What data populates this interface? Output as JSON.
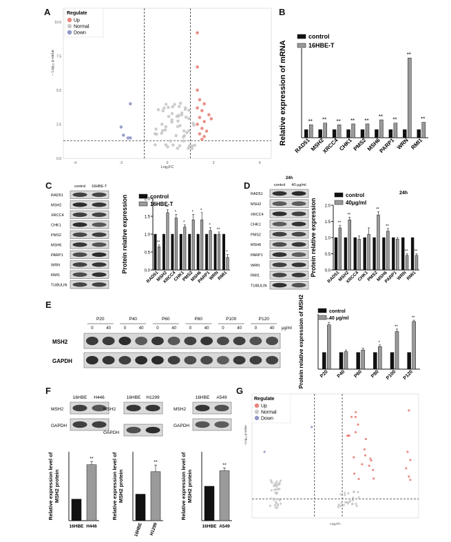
{
  "figure": {
    "panel_letters": [
      "A",
      "B",
      "C",
      "D",
      "E",
      "F",
      "G"
    ]
  },
  "panel_a": {
    "legend_title": "Regulate",
    "legend_items": [
      {
        "label": "Up",
        "color": "#e8847a"
      },
      {
        "label": "Normal",
        "color": "#c8c8c8"
      },
      {
        "label": "Down",
        "color": "#8f96c8"
      }
    ],
    "xlabel": "Log₂FC",
    "ylabel": "− Log₁₀ p-value",
    "x_ticks": [
      "-4",
      "-2",
      "0",
      "2",
      "4"
    ],
    "y_ticks": [
      "0.0",
      "2.5",
      "5.0",
      "7.5",
      "10.0"
    ]
  },
  "panel_b_chart": {
    "type": "bar",
    "ylabel": "Relative expression of mRNA",
    "legend": [
      "control",
      "16HBE-T"
    ],
    "categories": [
      "RAD51",
      "MSH2",
      "XRCC4",
      "CHK1",
      "PMS2",
      "MSH6",
      "PARP1",
      "WRN",
      "RMI1"
    ],
    "series": [
      {
        "name": "control",
        "values": [
          1,
          1,
          1,
          1,
          1,
          1,
          1,
          1,
          1
        ],
        "color": "#111111"
      },
      {
        "name": "16HBE-T",
        "values": [
          1.6,
          1.8,
          1.6,
          1.7,
          1.7,
          2.2,
          1.8,
          9.8,
          1.9
        ],
        "color": "#9a9a9a"
      }
    ],
    "significance": [
      "**",
      "**",
      "**",
      "**",
      "**",
      "**",
      "**",
      "**",
      "**"
    ],
    "ylim": [
      0,
      11
    ]
  },
  "panel_c": {
    "lanes": [
      "control",
      "16HBE-T"
    ],
    "proteins": [
      "RAD51",
      "MSH2",
      "XRCC4",
      "CHK1",
      "PMS2",
      "MSH6",
      "PARP1",
      "WRN",
      "RMI1",
      "TUBULIN"
    ]
  },
  "panel_c_chart": {
    "type": "bar",
    "ylabel": "Protein relative expression",
    "legend": [
      "control",
      "16HBE-T"
    ],
    "categories": [
      "RAD51",
      "MSH2",
      "XRCC4",
      "CHK1",
      "PMS2",
      "MSH6",
      "PARP1",
      "WRN",
      "RMI1"
    ],
    "series": [
      {
        "name": "control",
        "values": [
          1,
          1,
          1,
          1,
          1,
          1,
          1,
          1,
          1
        ],
        "color": "#111111"
      },
      {
        "name": "16HBE-T",
        "values": [
          0.65,
          1.6,
          1.45,
          1.2,
          1.4,
          1.4,
          1.1,
          1.0,
          0.35
        ],
        "color": "#9a9a9a"
      }
    ],
    "errors": [
      0.05,
      0.08,
      0.1,
      0.06,
      0.15,
      0.2,
      0.08,
      0.06,
      0.08
    ],
    "significance": [
      "**",
      "**",
      "*",
      "*",
      "*",
      "*",
      "*",
      "**",
      "*"
    ],
    "y_ticks": [
      "0.0",
      "0.5",
      "1.0",
      "1.5",
      "2.0"
    ],
    "ylim": [
      0,
      2.0
    ]
  },
  "panel_d": {
    "time_label": "24h",
    "lanes": [
      "control",
      "40 μg/ml"
    ],
    "proteins": [
      "RAD51",
      "MSH2",
      "XRCC4",
      "CHK1",
      "PMS2",
      "MSH6",
      "PARP1",
      "WRN",
      "RMI1",
      "TUBULIN"
    ]
  },
  "panel_d_chart": {
    "type": "bar",
    "title": "24h",
    "ylabel": "Protein relative expression",
    "legend": [
      "control",
      "40μg/ml"
    ],
    "categories": [
      "RAD51",
      "MSH2",
      "XRCC4",
      "CHK1",
      "PMS2",
      "MSH6",
      "PARP1",
      "WRN",
      "RMI1"
    ],
    "series": [
      {
        "name": "control",
        "values": [
          1,
          1,
          1,
          1,
          1,
          1,
          1,
          1,
          1
        ],
        "color": "#111111"
      },
      {
        "name": "40μg/ml",
        "values": [
          1.3,
          1.55,
          0.95,
          1.1,
          1.7,
          1.2,
          0.95,
          0.45,
          0.45
        ],
        "color": "#9a9a9a"
      }
    ],
    "errors": [
      0.08,
      0.08,
      0.1,
      0.2,
      0.1,
      0.08,
      0.05,
      0.05,
      0.05
    ],
    "significance": [
      "**",
      "**",
      "",
      "",
      "**",
      "**",
      "",
      "**",
      "**"
    ],
    "y_ticks": [
      "0.0",
      "0.5",
      "1.0",
      "1.5",
      "2.0"
    ],
    "ylim": [
      0,
      2.0
    ]
  },
  "panel_e": {
    "passages": [
      "P20",
      "P40",
      "P60",
      "P80",
      "P100",
      "P120"
    ],
    "doses": [
      "0",
      "40"
    ],
    "unit": "μg/ml",
    "proteins": [
      "MSH2",
      "GAPDH"
    ]
  },
  "panel_e_chart": {
    "type": "bar",
    "ylabel": "Protein relative expression of MSH2",
    "legend": [
      "control",
      "40 μg/ml"
    ],
    "categories": [
      "P20",
      "P40",
      "P60",
      "P80",
      "P100",
      "P120"
    ],
    "series": [
      {
        "name": "control",
        "values": [
          1,
          1,
          1,
          1,
          1,
          1
        ],
        "color": "#111111"
      },
      {
        "name": "40 μg/ml",
        "values": [
          2.65,
          1.05,
          1.15,
          1.35,
          2.25,
          2.85
        ],
        "color": "#9a9a9a"
      }
    ],
    "errors": [
      0.15,
      0.1,
      0.1,
      0.1,
      0.15,
      0.08
    ],
    "significance": [
      "**",
      "",
      "",
      "*",
      "**",
      "**"
    ],
    "ylim": [
      0,
      3.3
    ]
  },
  "panel_f": {
    "blots": [
      {
        "lanes": [
          "16HBE",
          "H446"
        ],
        "proteins": [
          "MSH2",
          "GAPDH"
        ]
      },
      {
        "lanes": [
          "16HBE",
          "H1299"
        ],
        "proteins": [
          "MSH2",
          "GAPDH"
        ]
      },
      {
        "lanes": [
          "16HBE",
          "A549"
        ],
        "proteins": [
          "MSH2",
          "GAPDH"
        ]
      }
    ],
    "charts": [
      {
        "type": "bar",
        "ylabel": "Relative expression level of MSH2 protein",
        "categories": [
          "16HBE",
          "H446"
        ],
        "values": [
          1.0,
          2.6
        ],
        "errors": [
          0,
          0.15
        ],
        "significance": "**",
        "ylim": [
          0,
          3.2
        ]
      },
      {
        "type": "bar",
        "ylabel": "Relative expression level of MSH2 protein",
        "categories": [
          "16HBE",
          "H1299"
        ],
        "values": [
          1.0,
          1.85
        ],
        "errors": [
          0,
          0.25
        ],
        "significance": "**",
        "ylim": [
          0,
          2.6
        ]
      },
      {
        "type": "bar",
        "ylabel": "Relative expression level of MSH2 protein",
        "categories": [
          "16HBE",
          "A549"
        ],
        "values": [
          1.0,
          1.45
        ],
        "errors": [
          0,
          0.08
        ],
        "significance": "**",
        "ylim": [
          0,
          2.0
        ]
      }
    ]
  },
  "panel_g": {
    "legend_title": "Regulate",
    "legend_items": [
      {
        "label": "Up",
        "color": "#e8847a"
      },
      {
        "label": "Normal",
        "color": "#c8c8c8"
      },
      {
        "label": "Down",
        "color": "#8f96c8"
      }
    ],
    "xlabel": "Log₂FC",
    "ylabel": "−Log₁₀ p-value"
  }
}
